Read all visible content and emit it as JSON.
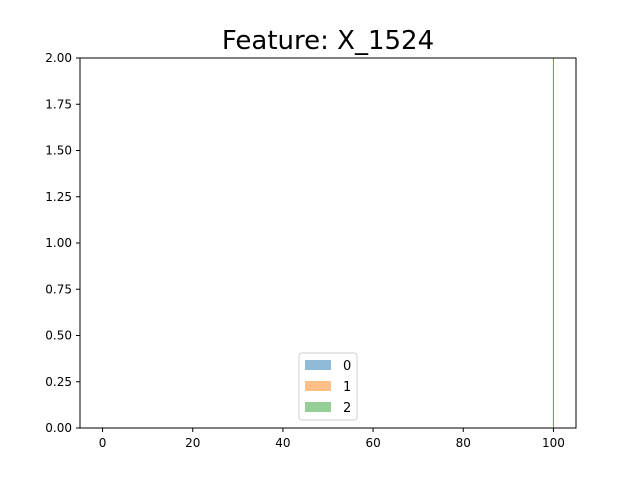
{
  "chart_data": {
    "type": "bar",
    "title": "Feature: X_1524",
    "xlabel": "",
    "ylabel": "",
    "xlim": [
      -5,
      105
    ],
    "ylim": [
      0,
      2.0
    ],
    "x_ticks": [
      "0",
      "20",
      "40",
      "60",
      "80",
      "100"
    ],
    "x_tick_values": [
      0,
      20,
      40,
      60,
      80,
      100
    ],
    "y_ticks": [
      "0.00",
      "0.25",
      "0.50",
      "0.75",
      "1.00",
      "1.25",
      "1.50",
      "1.75",
      "2.00"
    ],
    "y_tick_values": [
      0,
      0.25,
      0.5,
      0.75,
      1.0,
      1.25,
      1.5,
      1.75,
      2.0
    ],
    "grid": false,
    "legend_position": "bottom-center",
    "series": [
      {
        "name": "0",
        "color": "#1f77b4",
        "alpha": 0.5,
        "x": [
          100
        ],
        "values": [
          2
        ]
      },
      {
        "name": "1",
        "color": "#ff7f0e",
        "alpha": 0.5,
        "x": [
          100
        ],
        "values": [
          2
        ]
      },
      {
        "name": "2",
        "color": "#2ca02c",
        "alpha": 0.5,
        "x": [
          100
        ],
        "values": [
          2
        ]
      }
    ]
  }
}
